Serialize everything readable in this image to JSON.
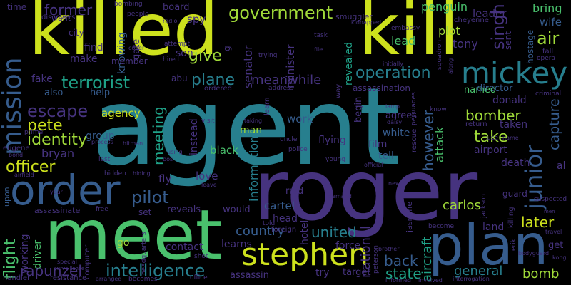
{
  "background_color": "#000000",
  "palette": [
    "#3b0f6f",
    "#46337f",
    "#365c8d",
    "#277f8e",
    "#1fa187",
    "#4ac16d",
    "#a0da39",
    "#cde11d"
  ],
  "words": {
    "agent": "agent",
    "roger": "roger",
    "killed": "killed",
    "kill": "kill",
    "meet": "meet",
    "plan": "plan",
    "mickey": "mickey",
    "order": "order",
    "stephen": "stephen",
    "mission": "mission",
    "government": "government",
    "terrorist": "terrorist",
    "operation": "operation",
    "escape": "escape",
    "intelligence": "intelligence",
    "pete": "pete",
    "identity": "identity",
    "officer": "officer",
    "pilot": "pilot",
    "flight": "flight",
    "rapunzel": "rapunzel",
    "junior": "junior",
    "capture": "capture",
    "air": "air",
    "singh": "singh",
    "former": "former",
    "plane": "plane",
    "meanwhile": "meanwhile",
    "united": "united",
    "country": "country",
    "bomber": "bomber",
    "take": "take",
    "back": "back",
    "state": "state",
    "general": "general",
    "bomb": "bomb",
    "later": "later",
    "carlos": "carlos",
    "agency": "agency",
    "meeting": "meeting",
    "give": "give",
    "senator": "senator",
    "minister": "minister",
    "revealed": "revealed",
    "lead": "lead",
    "leader": "leader",
    "plot": "plot",
    "tony": "tony",
    "bring": "bring",
    "wife": "wife",
    "penguin": "penguin",
    "spy": "spy",
    "son": "son",
    "make": "make",
    "find": "find",
    "city": "city",
    "fake": "fake",
    "help": "help",
    "also": "also",
    "group": "group",
    "bryan": "bryan",
    "fly": "fly",
    "love": "love",
    "black": "black",
    "information": "information",
    "man": "man",
    "work": "work",
    "white": "white",
    "film": "film",
    "tell": "tell",
    "flying": "flying",
    "however": "however",
    "attack": "attack",
    "airport": "airport",
    "taken": "taken",
    "donald": "donald",
    "director": "director",
    "named": "named",
    "cartel": "cartel",
    "raid": "raid",
    "head": "head",
    "contact": "contact",
    "reveals": "reveals",
    "would": "would",
    "set": "set",
    "learns": "learns",
    "force": "force",
    "try": "try",
    "target": "target",
    "national": "national",
    "aircraft": "aircraft",
    "land": "land",
    "get": "get",
    "death": "death",
    "guard": "guard",
    "assassin": "assassin",
    "assassinate": "assassinate",
    "working": "working",
    "driver": "driver",
    "go": "go",
    "al": "al",
    "time": "time",
    "board": "board",
    "member": "member",
    "knowing": "knowing",
    "abu": "abu",
    "instead": "instead",
    "hotel": "hotel",
    "upon": "upon",
    "assassination": "assassination",
    "sent": "sent",
    "hostage": "hostage",
    "fall": "fall",
    "opera": "opera",
    "criminal": "criminal",
    "return": "return",
    "use": "use",
    "want": "want",
    "discovers": "discovers",
    "bombing": "bombing",
    "people": "people",
    "radio": "radio",
    "smuggler": "smuggler",
    "cheyenne": "cheyenne",
    "embassy": "embassy",
    "task": "task",
    "kidnapped": "kidnapped",
    "gate": "gate",
    "attempt": "attempt",
    "hired": "hired",
    "cover": "cover",
    "trying": "trying",
    "file": "file",
    "address": "address",
    "learn": "learn",
    "ordered": "ordered",
    "foreign": "foreign",
    "way": "way",
    "begin": "begin",
    "agrees": "agrees",
    "daisy": "daisy",
    "lamp": "lamp",
    "know": "know",
    "rescue": "rescue",
    "persuades": "persuades",
    "squadron": "squadron",
    "initially": "initially",
    "along": "along",
    "name": "name",
    "visit": "visit",
    "taking": "taking",
    "uncle": "uncle",
    "police": "police",
    "young": "young",
    "official": "official",
    "hidden": "hidden",
    "hiding": "hiding",
    "bos": "bos",
    "using": "using",
    "hitman": "hitman",
    "last": "last",
    "process": "process",
    "computer": "computer",
    "eugene": "eugene",
    "bond": "bond",
    "prime": "prime",
    "airfield": "airfield",
    "year": "year",
    "free": "free",
    "leave": "leave",
    "demand": "demand",
    "new": "new",
    "jasmine": "jasmine",
    "jackson": "jackson",
    "killing": "killing",
    "become": "become",
    "suspected": "suspected",
    "men": "men",
    "travel": "travel",
    "kong": "kong",
    "brother": "brother",
    "headquarters": "headquarters",
    "shot": "shot",
    "told": "told",
    "office": "office",
    "informed": "informed",
    "involved": "involved",
    "interrogation": "interrogation",
    "handler": "handler",
    "resistance": "resistance",
    "arranged": "arranged",
    "becomes": "becomes",
    "special": "special",
    "surveillance": "surveillance",
    "peterson": "peterson",
    "bodyguard": "bodyguard",
    "erik": "erik",
    "g": "g"
  }
}
